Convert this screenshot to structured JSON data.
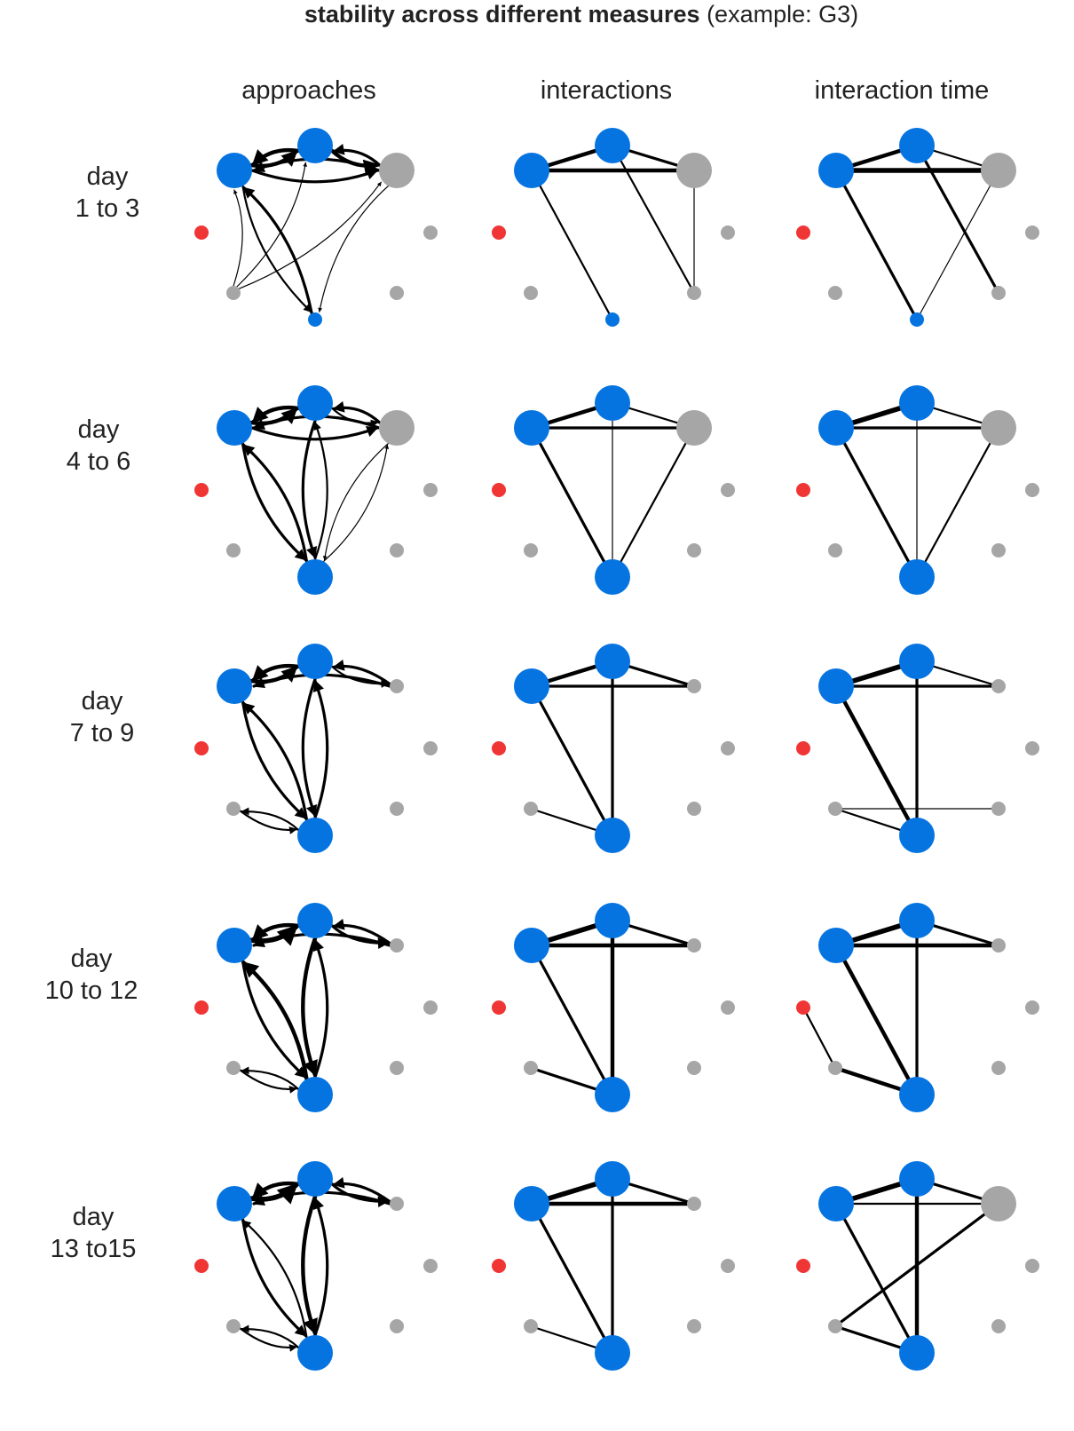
{
  "title": {
    "bold": "stability across different measures",
    "normal": " (example: G3)"
  },
  "columns": [
    "approaches",
    "interactions",
    "interaction time"
  ],
  "rows": [
    {
      "line1": "day",
      "line2": "1 to 3"
    },
    {
      "line1": "day",
      "line2": "4 to 6"
    },
    {
      "line1": "day",
      "line2": "7 to 9"
    },
    {
      "line1": "day",
      "line2": "10 to 12"
    },
    {
      "line1": "day",
      "line2": "13 to15"
    }
  ],
  "colors": {
    "blue": "#0574e0",
    "gray": "#a6a6a6",
    "red": "#f03535",
    "edge": "#000000"
  },
  "nodes": [
    "A",
    "B",
    "C",
    "D",
    "E",
    "F",
    "G",
    "H"
  ],
  "node_colors": {
    "A": "blue",
    "B": "blue",
    "C": "gray",
    "D": "gray",
    "E": "blue",
    "F": "gray",
    "G": "gray",
    "H": "red"
  },
  "networks": [
    [
      {
        "directed": true,
        "sizes": {
          "A": 3,
          "B": 3,
          "C": 3,
          "D": 1,
          "E": 1,
          "F": 1,
          "G": 1,
          "H": 1
        },
        "edges": [
          [
            "A",
            "B",
            4
          ],
          [
            "B",
            "A",
            4
          ],
          [
            "B",
            "C",
            4
          ],
          [
            "C",
            "B",
            3
          ],
          [
            "A",
            "C",
            3
          ],
          [
            "C",
            "A",
            3
          ],
          [
            "D",
            "B",
            1
          ],
          [
            "D",
            "C",
            1
          ],
          [
            "A",
            "E",
            2
          ],
          [
            "E",
            "A",
            3
          ],
          [
            "C",
            "E",
            1
          ],
          [
            "D",
            "A",
            1
          ]
        ]
      },
      {
        "directed": false,
        "sizes": {
          "A": 3,
          "B": 3,
          "C": 3,
          "D": 1,
          "E": 1,
          "F": 1,
          "G": 1,
          "H": 1
        },
        "edges": [
          [
            "A",
            "B",
            4
          ],
          [
            "B",
            "C",
            3
          ],
          [
            "A",
            "C",
            4
          ],
          [
            "A",
            "E",
            2
          ],
          [
            "B",
            "F",
            2
          ],
          [
            "C",
            "F",
            1
          ]
        ]
      },
      {
        "directed": false,
        "sizes": {
          "A": 3,
          "B": 3,
          "C": 3,
          "D": 1,
          "E": 1,
          "F": 1,
          "G": 1,
          "H": 1
        },
        "edges": [
          [
            "A",
            "B",
            4
          ],
          [
            "B",
            "C",
            2
          ],
          [
            "A",
            "C",
            5
          ],
          [
            "A",
            "E",
            3
          ],
          [
            "B",
            "F",
            3
          ],
          [
            "C",
            "E",
            1
          ]
        ]
      }
    ],
    [
      {
        "directed": true,
        "sizes": {
          "A": 3,
          "B": 3,
          "C": 3,
          "D": 1,
          "E": 3,
          "F": 1,
          "G": 1,
          "H": 1
        },
        "edges": [
          [
            "A",
            "B",
            4
          ],
          [
            "B",
            "A",
            4
          ],
          [
            "B",
            "C",
            2
          ],
          [
            "C",
            "B",
            3
          ],
          [
            "A",
            "C",
            3
          ],
          [
            "C",
            "A",
            3
          ],
          [
            "A",
            "E",
            3
          ],
          [
            "E",
            "A",
            3
          ],
          [
            "B",
            "E",
            3
          ],
          [
            "E",
            "B",
            2
          ],
          [
            "C",
            "E",
            1
          ],
          [
            "E",
            "C",
            1
          ]
        ]
      },
      {
        "directed": false,
        "sizes": {
          "A": 3,
          "B": 3,
          "C": 3,
          "D": 1,
          "E": 3,
          "F": 1,
          "G": 1,
          "H": 1
        },
        "edges": [
          [
            "A",
            "B",
            4
          ],
          [
            "B",
            "C",
            2
          ],
          [
            "A",
            "C",
            3
          ],
          [
            "A",
            "E",
            3
          ],
          [
            "B",
            "E",
            1
          ],
          [
            "C",
            "E",
            2
          ]
        ]
      },
      {
        "directed": false,
        "sizes": {
          "A": 3,
          "B": 3,
          "C": 3,
          "D": 1,
          "E": 3,
          "F": 1,
          "G": 1,
          "H": 1
        },
        "edges": [
          [
            "A",
            "B",
            5
          ],
          [
            "B",
            "C",
            2
          ],
          [
            "A",
            "C",
            3
          ],
          [
            "A",
            "E",
            3
          ],
          [
            "B",
            "E",
            1
          ],
          [
            "C",
            "E",
            2
          ]
        ]
      }
    ],
    [
      {
        "directed": true,
        "sizes": {
          "A": 3,
          "B": 3,
          "C": 1,
          "D": 1,
          "E": 3,
          "F": 1,
          "G": 1,
          "H": 1
        },
        "edges": [
          [
            "A",
            "B",
            4
          ],
          [
            "B",
            "A",
            4
          ],
          [
            "B",
            "C",
            2
          ],
          [
            "C",
            "B",
            3
          ],
          [
            "C",
            "A",
            3
          ],
          [
            "A",
            "E",
            3
          ],
          [
            "E",
            "A",
            3
          ],
          [
            "B",
            "E",
            3
          ],
          [
            "E",
            "B",
            3
          ],
          [
            "D",
            "E",
            2
          ],
          [
            "E",
            "D",
            2
          ]
        ]
      },
      {
        "directed": false,
        "sizes": {
          "A": 3,
          "B": 3,
          "C": 1,
          "D": 1,
          "E": 3,
          "F": 1,
          "G": 1,
          "H": 1
        },
        "edges": [
          [
            "A",
            "B",
            4
          ],
          [
            "B",
            "C",
            3
          ],
          [
            "A",
            "C",
            3
          ],
          [
            "A",
            "E",
            3
          ],
          [
            "B",
            "E",
            3
          ],
          [
            "D",
            "E",
            2
          ]
        ]
      },
      {
        "directed": false,
        "sizes": {
          "A": 3,
          "B": 3,
          "C": 1,
          "D": 1,
          "E": 3,
          "F": 1,
          "G": 1,
          "H": 1
        },
        "edges": [
          [
            "A",
            "B",
            5
          ],
          [
            "B",
            "C",
            2
          ],
          [
            "A",
            "C",
            3
          ],
          [
            "A",
            "E",
            4
          ],
          [
            "B",
            "E",
            3
          ],
          [
            "D",
            "E",
            2
          ],
          [
            "D",
            "F",
            1
          ]
        ]
      }
    ],
    [
      {
        "directed": true,
        "sizes": {
          "A": 3,
          "B": 3,
          "C": 1,
          "D": 1,
          "E": 3,
          "F": 1,
          "G": 1,
          "H": 1
        },
        "edges": [
          [
            "A",
            "B",
            5
          ],
          [
            "B",
            "A",
            4
          ],
          [
            "B",
            "C",
            3
          ],
          [
            "C",
            "B",
            3
          ],
          [
            "C",
            "A",
            3
          ],
          [
            "A",
            "E",
            3
          ],
          [
            "E",
            "A",
            4
          ],
          [
            "B",
            "E",
            4
          ],
          [
            "E",
            "B",
            3
          ],
          [
            "D",
            "E",
            2
          ],
          [
            "E",
            "D",
            2
          ]
        ]
      },
      {
        "directed": false,
        "sizes": {
          "A": 3,
          "B": 3,
          "C": 1,
          "D": 1,
          "E": 3,
          "F": 1,
          "G": 1,
          "H": 1
        },
        "edges": [
          [
            "A",
            "B",
            5
          ],
          [
            "B",
            "C",
            3
          ],
          [
            "A",
            "C",
            4
          ],
          [
            "A",
            "E",
            3
          ],
          [
            "B",
            "E",
            4
          ],
          [
            "D",
            "E",
            3
          ]
        ]
      },
      {
        "directed": false,
        "sizes": {
          "A": 3,
          "B": 3,
          "C": 1,
          "D": 1,
          "E": 3,
          "F": 1,
          "G": 1,
          "H": 1
        },
        "edges": [
          [
            "A",
            "B",
            5
          ],
          [
            "B",
            "C",
            3
          ],
          [
            "A",
            "C",
            4
          ],
          [
            "A",
            "E",
            4
          ],
          [
            "B",
            "E",
            3
          ],
          [
            "D",
            "E",
            4
          ],
          [
            "H",
            "D",
            2
          ]
        ]
      }
    ],
    [
      {
        "directed": true,
        "sizes": {
          "A": 3,
          "B": 3,
          "C": 1,
          "D": 1,
          "E": 3,
          "F": 1,
          "G": 1,
          "H": 1
        },
        "edges": [
          [
            "A",
            "B",
            5
          ],
          [
            "B",
            "A",
            4
          ],
          [
            "B",
            "C",
            3
          ],
          [
            "C",
            "B",
            3
          ],
          [
            "C",
            "A",
            3
          ],
          [
            "A",
            "E",
            3
          ],
          [
            "E",
            "A",
            2
          ],
          [
            "B",
            "E",
            4
          ],
          [
            "E",
            "B",
            3
          ],
          [
            "D",
            "E",
            2
          ],
          [
            "E",
            "D",
            2
          ]
        ]
      },
      {
        "directed": false,
        "sizes": {
          "A": 3,
          "B": 3,
          "C": 1,
          "D": 1,
          "E": 3,
          "F": 1,
          "G": 1,
          "H": 1
        },
        "edges": [
          [
            "A",
            "B",
            5
          ],
          [
            "B",
            "C",
            3
          ],
          [
            "A",
            "C",
            4
          ],
          [
            "A",
            "E",
            3
          ],
          [
            "B",
            "E",
            3
          ],
          [
            "D",
            "E",
            2
          ]
        ]
      },
      {
        "directed": false,
        "sizes": {
          "A": 3,
          "B": 3,
          "C": 3,
          "D": 1,
          "E": 3,
          "F": 1,
          "G": 1,
          "H": 1
        },
        "edges": [
          [
            "A",
            "B",
            5
          ],
          [
            "B",
            "C",
            3
          ],
          [
            "A",
            "C",
            2
          ],
          [
            "A",
            "E",
            3
          ],
          [
            "B",
            "E",
            4
          ],
          [
            "D",
            "E",
            3
          ],
          [
            "C",
            "D",
            3
          ]
        ]
      }
    ]
  ]
}
